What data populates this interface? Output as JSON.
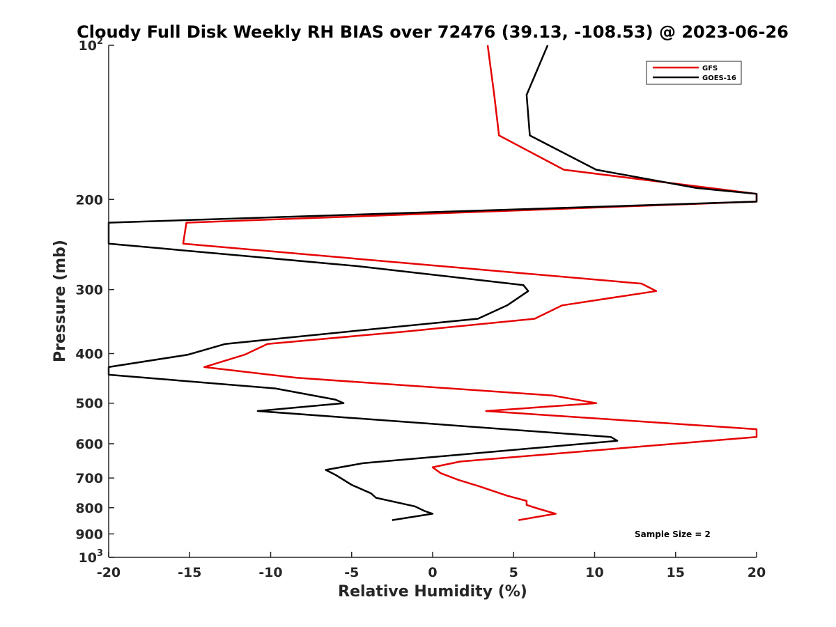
{
  "chart_data": {
    "type": "line",
    "title": "Cloudy Full Disk Weekly RH BIAS over 72476 (39.13, -108.53) @ 2023-06-26",
    "xlabel": "Relative Humidity (%)",
    "ylabel": "Pressure (mb)",
    "xlim": [
      -20,
      20
    ],
    "ylim": [
      100,
      1000
    ],
    "yscale": "log",
    "y_reversed": true,
    "xticks": [
      -20,
      -15,
      -10,
      -5,
      0,
      5,
      10,
      15,
      20
    ],
    "yticks": [
      {
        "value": 100,
        "base": "10",
        "exp": "2"
      },
      {
        "value": 200,
        "label": "200"
      },
      {
        "value": 300,
        "label": "300"
      },
      {
        "value": 400,
        "label": "400"
      },
      {
        "value": 500,
        "label": "500"
      },
      {
        "value": 600,
        "label": "600"
      },
      {
        "value": 700,
        "label": "700"
      },
      {
        "value": 800,
        "label": "800"
      },
      {
        "value": 900,
        "label": "900"
      },
      {
        "value": 1000,
        "base": "10",
        "exp": "3"
      }
    ],
    "grid": false,
    "legend_position": "top-right",
    "series": [
      {
        "name": "GFS",
        "color": "#e60000",
        "points": [
          [
            3.4,
            100
          ],
          [
            3.8,
            125
          ],
          [
            4.1,
            150
          ],
          [
            8.1,
            175
          ],
          [
            20,
            195
          ],
          [
            20,
            202
          ],
          [
            -15.2,
            222
          ],
          [
            -15.4,
            244
          ],
          [
            1.7,
            272
          ],
          [
            12.9,
            292
          ],
          [
            13.8,
            302
          ],
          [
            8.0,
            322
          ],
          [
            6.3,
            342
          ],
          [
            -1.6,
            362
          ],
          [
            -10.2,
            383
          ],
          [
            -11.6,
            402
          ],
          [
            -14.1,
            425
          ],
          [
            -8.4,
            446
          ],
          [
            7.4,
            483
          ],
          [
            10.1,
            500
          ],
          [
            3.3,
            518
          ],
          [
            20,
            562
          ],
          [
            20,
            582
          ],
          [
            1.7,
            650
          ],
          [
            0,
            667
          ],
          [
            0.5,
            685
          ],
          [
            1.6,
            706
          ],
          [
            2.9,
            727
          ],
          [
            4.6,
            758
          ],
          [
            5.8,
            776
          ],
          [
            5.8,
            790
          ],
          [
            6.5,
            803
          ],
          [
            7.6,
            822
          ],
          [
            5.3,
            846
          ]
        ]
      },
      {
        "name": "GOES-16",
        "color": "#000000",
        "points": [
          [
            7.1,
            100
          ],
          [
            5.8,
            125
          ],
          [
            6.0,
            150
          ],
          [
            10.1,
            175
          ],
          [
            16.3,
            190
          ],
          [
            20,
            195
          ],
          [
            20,
            202
          ],
          [
            -20,
            222
          ],
          [
            -20,
            244
          ],
          [
            -4.6,
            270
          ],
          [
            5.6,
            294
          ],
          [
            5.9,
            302
          ],
          [
            4.6,
            322
          ],
          [
            2.8,
            342
          ],
          [
            -5.1,
            362
          ],
          [
            -12.8,
            383
          ],
          [
            -15.1,
            402
          ],
          [
            -20,
            425
          ],
          [
            -20,
            440
          ],
          [
            -9.7,
            468
          ],
          [
            -6.0,
            492
          ],
          [
            -5.5,
            500
          ],
          [
            -10.8,
            518
          ],
          [
            11.0,
            582
          ],
          [
            11.4,
            592
          ],
          [
            -4.3,
            655
          ],
          [
            -6.6,
            675
          ],
          [
            -6.0,
            690
          ],
          [
            -5.0,
            722
          ],
          [
            -3.8,
            750
          ],
          [
            -3.5,
            765
          ],
          [
            -1.1,
            795
          ],
          [
            -0.5,
            812
          ],
          [
            0,
            822
          ],
          [
            -2.5,
            846
          ]
        ]
      }
    ],
    "annotation": "Sample Size = 2"
  }
}
